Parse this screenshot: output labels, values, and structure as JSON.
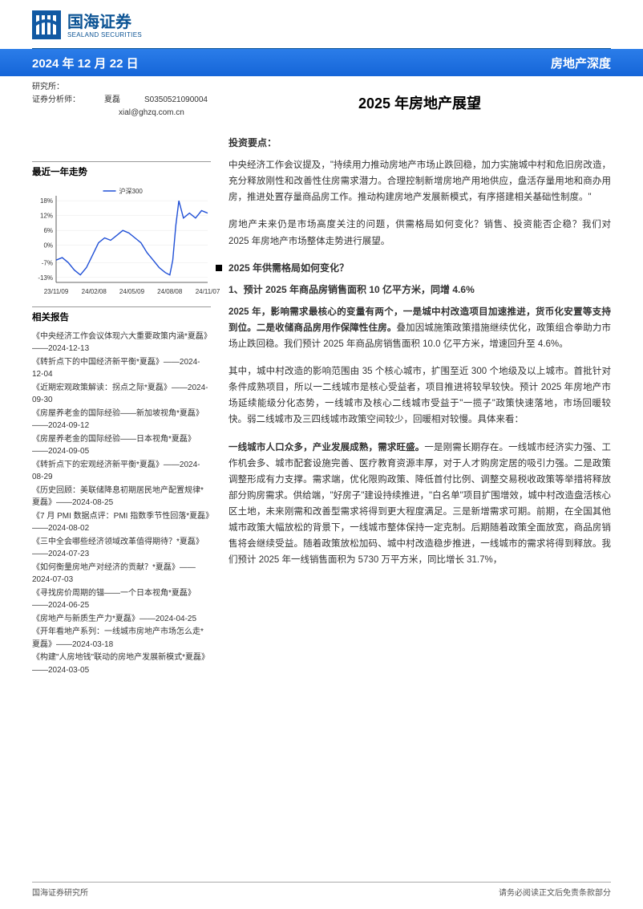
{
  "logo": {
    "name_cn": "国海证券",
    "name_en": "SEALAND SECURITIES",
    "brand_color": "#0b5394"
  },
  "blue_band": {
    "date": "2024 年 12 月 22 日",
    "category": "房地产深度",
    "bg_gradient_top": "#2b7de9",
    "bg_gradient_bottom": "#1565d8"
  },
  "meta": {
    "dept": "研究所：",
    "analyst_label": "证券分析师：",
    "analyst_name": "夏磊",
    "analyst_code": "S0350521090004",
    "analyst_email": "xial@ghzq.com.cn"
  },
  "report_title": "2025 年房地产展望",
  "trend_section": {
    "title": "最近一年走势",
    "chart": {
      "type": "line",
      "series_name": "沪深300",
      "series_color": "#1f4fd6",
      "x_labels": [
        "23/11/09",
        "24/02/08",
        "24/05/09",
        "24/08/08",
        "24/11/07"
      ],
      "y_ticks": [
        -13,
        -7,
        0,
        6,
        12,
        18
      ],
      "y_tick_suffix": "%",
      "ylim": [
        -15,
        20
      ],
      "background": "#ffffff",
      "grid_color": "#e8e8e8",
      "axis_color": "#333333",
      "axis_fontsize": 8,
      "legend_fontsize": 8,
      "data": [
        {
          "x": 0.0,
          "y": -6
        },
        {
          "x": 0.04,
          "y": -5
        },
        {
          "x": 0.08,
          "y": -7
        },
        {
          "x": 0.12,
          "y": -10
        },
        {
          "x": 0.16,
          "y": -12
        },
        {
          "x": 0.2,
          "y": -9
        },
        {
          "x": 0.24,
          "y": -4
        },
        {
          "x": 0.28,
          "y": 1
        },
        {
          "x": 0.32,
          "y": 3
        },
        {
          "x": 0.36,
          "y": 2
        },
        {
          "x": 0.4,
          "y": 4
        },
        {
          "x": 0.44,
          "y": 6
        },
        {
          "x": 0.48,
          "y": 5
        },
        {
          "x": 0.52,
          "y": 3
        },
        {
          "x": 0.56,
          "y": 1
        },
        {
          "x": 0.6,
          "y": -3
        },
        {
          "x": 0.64,
          "y": -6
        },
        {
          "x": 0.68,
          "y": -9
        },
        {
          "x": 0.72,
          "y": -11
        },
        {
          "x": 0.75,
          "y": -12
        },
        {
          "x": 0.77,
          "y": -6
        },
        {
          "x": 0.79,
          "y": 8
        },
        {
          "x": 0.81,
          "y": 18
        },
        {
          "x": 0.84,
          "y": 11
        },
        {
          "x": 0.88,
          "y": 13
        },
        {
          "x": 0.92,
          "y": 11
        },
        {
          "x": 0.96,
          "y": 14
        },
        {
          "x": 1.0,
          "y": 13
        }
      ]
    }
  },
  "related_section": {
    "title": "相关报告",
    "items": [
      "《中央经济工作会议体现六大重要政策内涵*夏磊》——2024-12-13",
      "《转折点下的中国经济新平衡*夏磊》——2024-12-04",
      "《近期宏观政策解读：拐点之际*夏磊》——2024-09-30",
      "《房屋养老金的国际经验——新加坡视角*夏磊》——2024-09-12",
      "《房屋养老金的国际经验——日本视角*夏磊》——2024-09-05",
      "《转折点下的宏观经济新平衡*夏磊》——2024-08-29",
      "《历史回顾：美联储降息初期居民地产配置规律*夏磊》——2024-08-25",
      "《7 月 PMI 数据点评：PMI 指数季节性回落*夏磊》——2024-08-02",
      "《三中全会哪些经济领域改革值得期待？*夏磊》——2024-07-23",
      "《如何衡量房地产对经济的贡献？*夏磊》——2024-07-03",
      "《寻找房价周期的锚——一个日本视角*夏磊》——2024-06-25",
      "《房地产与新质生产力*夏磊》——2024-04-25",
      "《开年看地产系列：一线城市房地产市场怎么走*夏磊》——2024-03-18",
      "《构建\"人房地钱\"联动的房地产发展新模式*夏磊》——2024-03-05"
    ]
  },
  "invest": {
    "title": "投资要点：",
    "p1": "中央经济工作会议提及，\"持续用力推动房地产市场止跌回稳，加力实施城中村和危旧房改造，充分释放刚性和改善性住房需求潜力。合理控制新增房地产用地供应，盘活存量用地和商办用房，推进处置存量商品房工作。推动构建房地产发展新模式，有序搭建相关基础性制度。\"",
    "p2": "房地产未来仍是市场高度关注的问题，供需格局如何变化？销售、投资能否企稳？我们对 2025 年房地产市场整体走势进行展望。",
    "bullet": "2025 年供需格局如何变化？",
    "sub1": "1、预计 2025 年商品房销售面积 10 亿平方米，同增 4.6%",
    "p3_bold": "2025 年，影响需求最核心的变量有两个，一是城中村改造项目加速推进，货币化安置等支持到位。二是收储商品房用作保障性住房。",
    "p3_tail": "叠加因城施策政策措施继续优化，政策组合拳助力市场止跌回稳。我们预计 2025 年商品房销售面积 10.0 亿平方米，增速回升至 4.6%。",
    "p4": "其中，城中村改造的影响范围由 35 个核心城市，扩围至近 300 个地级及以上城市。首批针对条件成熟项目，所以一二线城市是核心受益者，项目推进将较早较快。预计 2025 年房地产市场延续能级分化态势，一线城市及核心二线城市受益于\"一揽子\"政策快速落地，市场回暖较快。弱二线城市及三四线城市政策空间较少，回暖相对较慢。具体来看：",
    "p5_bold": "一线城市人口众多，产业发展成熟，需求旺盛。",
    "p5_tail": "一是刚需长期存在。一线城市经济实力强、工作机会多、城市配套设施完善、医疗教育资源丰厚，对于人才购房定居的吸引力强。二是政策调整形成有力支撑。需求端，优化限购政策、降低首付比例、调整交易税收政策等举措将释放部分购房需求。供给端，\"好房子\"建设持续推进，\"白名单\"项目扩围增效，城中村改造盘活核心区土地，未来刚需和改善型需求将得到更大程度满足。三是新增需求可期。前期，在全国其他城市政策大幅放松的背景下，一线城市整体保持一定克制。后期随着政策全面放宽，商品房销售将会继续受益。随着政策放松加码、城中村改造稳步推进，一线城市的需求将得到释放。我们预计 2025 年一线销售面积为 5730 万平方米，同比增长 31.7%，"
  },
  "footer": {
    "left": "国海证券研究所",
    "right": "请务必阅读正文后免责条款部分"
  }
}
